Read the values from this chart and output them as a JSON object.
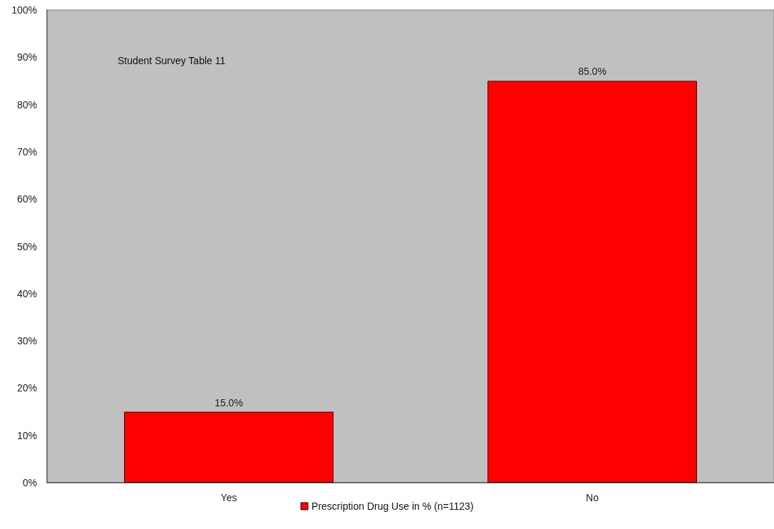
{
  "chart_data": {
    "type": "bar",
    "categories": [
      "Yes",
      "No"
    ],
    "series": [
      {
        "name": "Prescription Drug Use in % (n=1123)",
        "color": "#ff0000",
        "values": [
          15,
          85
        ],
        "value_labels": [
          "15.0%",
          "85.0%"
        ]
      }
    ],
    "ylim": [
      0,
      100
    ],
    "yticks": [
      {
        "value": 0,
        "label": "0%"
      },
      {
        "value": 10,
        "label": "10%"
      },
      {
        "value": 20,
        "label": "20%"
      },
      {
        "value": 30,
        "label": "30%"
      },
      {
        "value": 40,
        "label": "40%"
      },
      {
        "value": 50,
        "label": "50%"
      },
      {
        "value": 60,
        "label": "60%"
      },
      {
        "value": 70,
        "label": "70%"
      },
      {
        "value": 80,
        "label": "80%"
      },
      {
        "value": 90,
        "label": "90%"
      },
      {
        "value": 100,
        "label": "100%"
      }
    ],
    "legend": "bottom",
    "annotations": [
      "Student Survey Table 11"
    ]
  }
}
